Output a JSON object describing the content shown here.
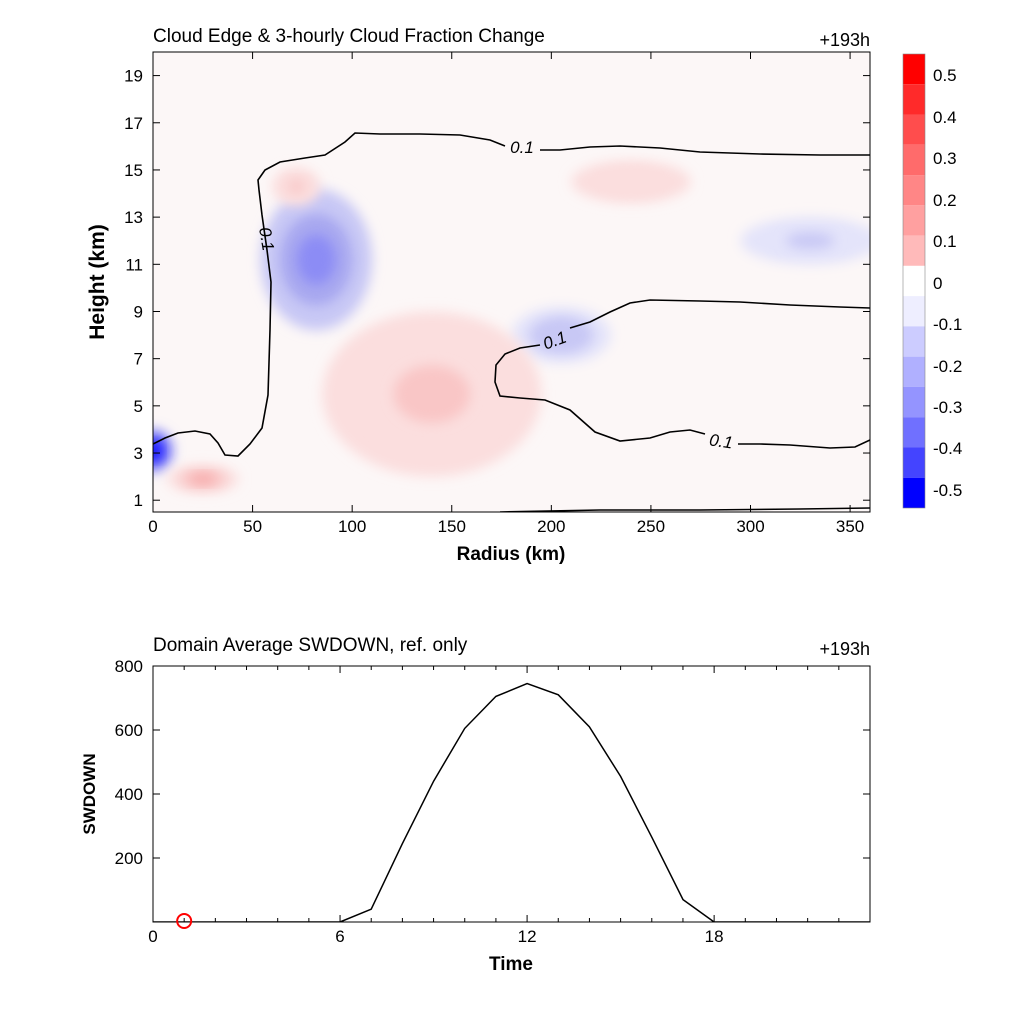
{
  "chart_data": [
    {
      "type": "heatmap",
      "title": "Cloud Edge & 3-hourly Cloud Fraction Change",
      "time_label": "+193h",
      "xlabel": "Radius (km)",
      "ylabel": "Height (km)",
      "xlim": [
        0,
        360
      ],
      "ylim": [
        0.5,
        20
      ],
      "xticks": [
        "0",
        "50",
        "100",
        "150",
        "200",
        "250",
        "300",
        "350"
      ],
      "yticks": [
        "1",
        "3",
        "5",
        "7",
        "9",
        "11",
        "13",
        "15",
        "17",
        "19"
      ],
      "colorbar": {
        "levels": [
          "0.5",
          "0.4",
          "0.3",
          "0.2",
          "0.1",
          "0",
          "-0.1",
          "-0.2",
          "-0.3",
          "-0.4",
          "-0.5"
        ],
        "colors": [
          "#ff0000",
          "#ff3333",
          "#ff6666",
          "#ff8c8c",
          "#ffb0b0",
          "#ffd2d2",
          "#ffeaea",
          "#fafafa",
          "#eaeaff",
          "#d2d2ff",
          "#b4b4ff",
          "#9696ff",
          "#7070ff",
          "#4040ff",
          "#0000ff"
        ]
      },
      "contour_label": "0.1",
      "features": [
        {
          "kind": "blue",
          "x": 82,
          "y": 11.2,
          "rx": 28,
          "ry": 3.0,
          "value": -0.25
        },
        {
          "kind": "blue",
          "x": 0,
          "y": 3.1,
          "rx": 10,
          "ry": 0.9,
          "value": -0.5
        },
        {
          "kind": "blue",
          "x": 205,
          "y": 8.0,
          "rx": 25,
          "ry": 1.2,
          "value": -0.15
        },
        {
          "kind": "blue",
          "x": 330,
          "y": 12.0,
          "rx": 35,
          "ry": 1.0,
          "value": -0.12
        },
        {
          "kind": "red",
          "x": 140,
          "y": 5.5,
          "rx": 55,
          "ry": 3.5,
          "value": 0.12
        },
        {
          "kind": "red",
          "x": 25,
          "y": 1.9,
          "rx": 18,
          "ry": 0.6,
          "value": 0.2
        },
        {
          "kind": "red",
          "x": 72,
          "y": 14.3,
          "rx": 12,
          "ry": 0.8,
          "value": 0.12
        },
        {
          "kind": "red",
          "x": 240,
          "y": 14.5,
          "rx": 30,
          "ry": 0.9,
          "value": 0.08
        }
      ]
    },
    {
      "type": "line",
      "title": "Domain Average SWDOWN, ref. only",
      "time_label": "+193h",
      "xlabel": "Time",
      "ylabel": "SWDOWN",
      "xlim": [
        0,
        23
      ],
      "ylim": [
        0,
        800
      ],
      "xticks": [
        0,
        6,
        12,
        18
      ],
      "yticks": [
        200,
        400,
        600,
        800
      ],
      "x": [
        0,
        1,
        2,
        3,
        4,
        5,
        6,
        7,
        8,
        9,
        10,
        11,
        12,
        13,
        14,
        15,
        16,
        17,
        18,
        19,
        20,
        21,
        22,
        23
      ],
      "y": [
        0,
        0,
        0,
        0,
        0,
        0,
        0,
        40,
        245,
        440,
        605,
        705,
        745,
        710,
        610,
        455,
        265,
        70,
        0,
        0,
        0,
        0,
        0,
        0
      ],
      "marker": {
        "x": 1,
        "y": 0,
        "color": "#ff0000"
      }
    }
  ]
}
